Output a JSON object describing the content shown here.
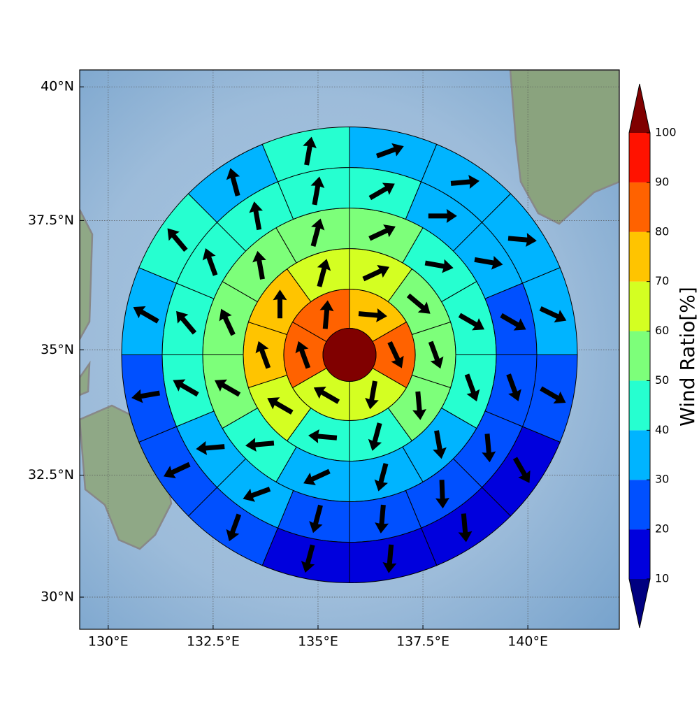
{
  "chart_data": {
    "type": "polar-sector-map",
    "projection": "mercator",
    "grid": true,
    "xlim": [
      129.32,
      142.18
    ],
    "ylim": [
      29.33,
      40.31
    ],
    "xticks": [
      {
        "value": 130,
        "label": "130°E"
      },
      {
        "value": 132.5,
        "label": "132.5°E"
      },
      {
        "value": 135,
        "label": "135°E"
      },
      {
        "value": 137.5,
        "label": "137.5°E"
      },
      {
        "value": 140,
        "label": "140°E"
      }
    ],
    "yticks": [
      {
        "value": 30,
        "label": "30°N"
      },
      {
        "value": 32.5,
        "label": "32.5°N"
      },
      {
        "value": 35,
        "label": "35°N"
      },
      {
        "value": 37.5,
        "label": "37.5°N"
      },
      {
        "value": 40,
        "label": "40°N"
      }
    ],
    "center": [
      135.75,
      34.9
    ],
    "center_value": 100,
    "rings": [
      {
        "values": [
          75,
          85,
          65,
          63,
          85,
          82
        ],
        "directions": [
          95,
          155,
          190,
          300,
          340,
          5
        ]
      },
      {
        "values": [
          65,
          55,
          55,
          55,
          45,
          45,
          62,
          72,
          75,
          65
        ],
        "directions": [
          65,
          130,
          160,
          175,
          195,
          275,
          300,
          340,
          0,
          15
        ]
      },
      {
        "values": [
          55,
          45,
          45,
          45,
          35,
          35,
          35,
          45,
          55,
          55,
          55,
          55
        ],
        "directions": [
          65,
          100,
          120,
          160,
          170,
          195,
          245,
          265,
          300,
          335,
          350,
          15
        ]
      },
      {
        "values": [
          45,
          35,
          35,
          25,
          25,
          25,
          25,
          22,
          25,
          35,
          35,
          45,
          45,
          45,
          45,
          45
        ],
        "directions": [
          60,
          90,
          100,
          120,
          160,
          175,
          178,
          185,
          195,
          250,
          265,
          300,
          320,
          340,
          350,
          10
        ]
      },
      {
        "values": [
          35,
          35,
          35,
          35,
          25,
          15,
          15,
          15,
          15,
          25,
          25,
          25,
          35,
          45,
          35,
          45
        ],
        "directions": [
          70,
          85,
          95,
          115,
          120,
          150,
          175,
          185,
          195,
          200,
          245,
          260,
          300,
          320,
          345,
          10
        ]
      }
    ],
    "colorbar": {
      "label": "Wind Ratio[%]",
      "extend": "both",
      "levels": [
        10,
        20,
        30,
        40,
        50,
        60,
        70,
        80,
        90,
        100
      ],
      "colors": [
        "#000080",
        "#0000dd",
        "#0050ff",
        "#00b4ff",
        "#26ffd0",
        "#7dff7a",
        "#d4ff22",
        "#ffc400",
        "#ff6200",
        "#ff1200",
        "#800000"
      ]
    }
  }
}
